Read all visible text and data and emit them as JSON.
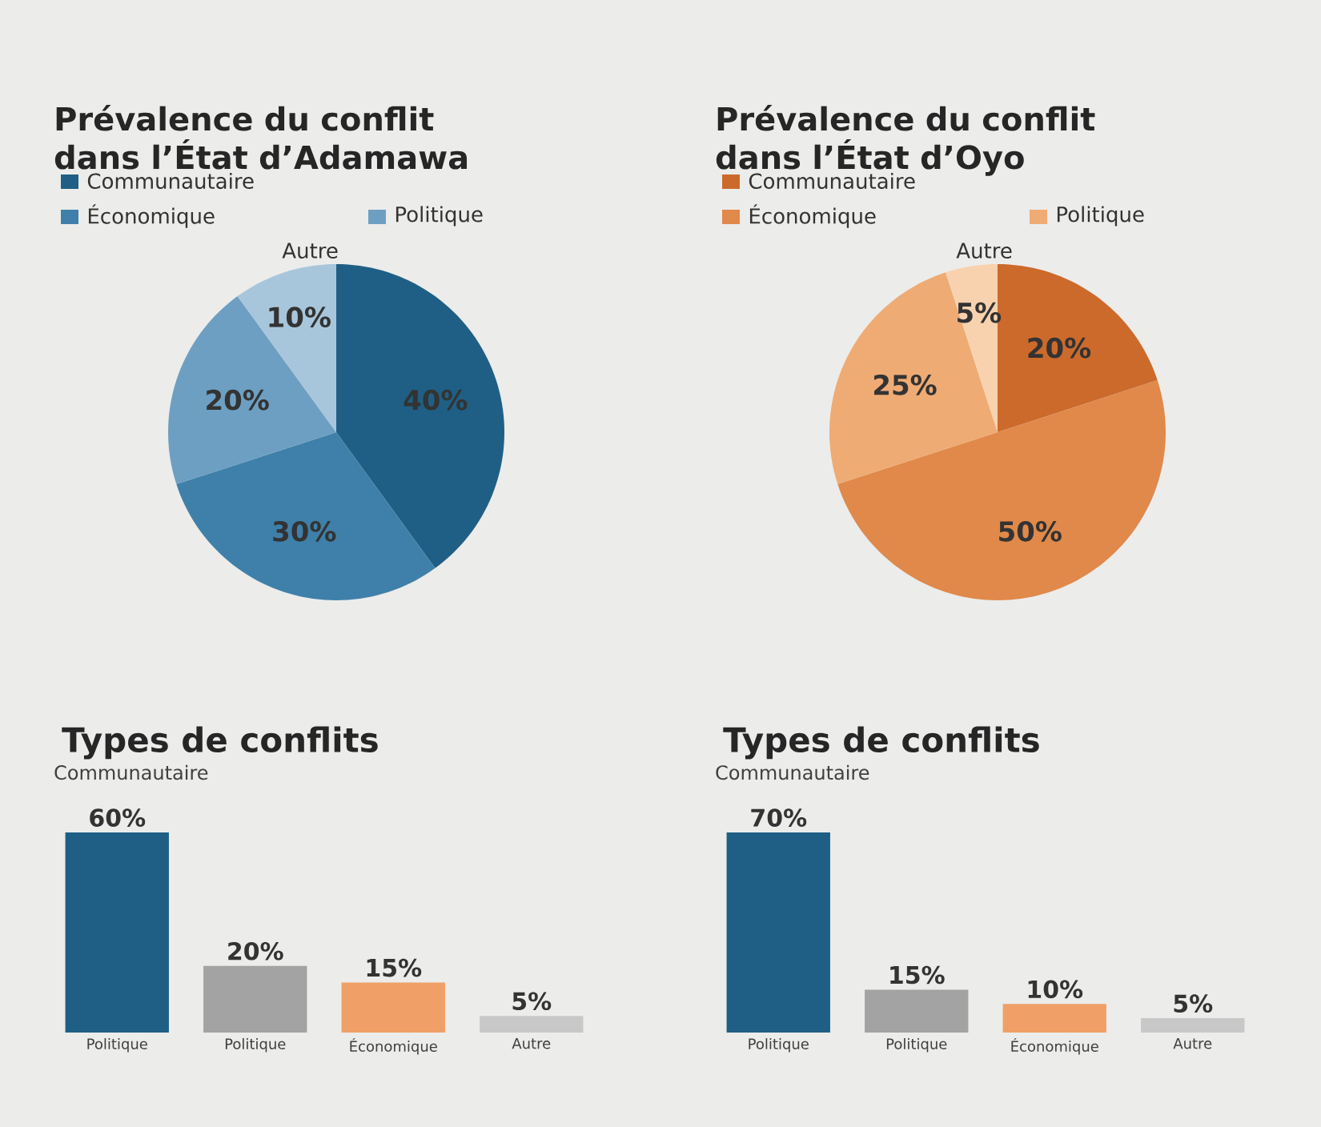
{
  "chart_data": [
    {
      "type": "pie",
      "title": "Prévalence du conflit dans l’État d’Adamawa",
      "categories": [
        "Communautaire",
        "Économique",
        "Politique",
        "Autre"
      ],
      "values": [
        40,
        30,
        20,
        10
      ],
      "value_labels": [
        "40%",
        "30%",
        "20%",
        "10%"
      ],
      "colors": [
        "#1f5f85",
        "#3f80aa",
        "#6d9fc2",
        "#a8c6db"
      ],
      "legend": "top"
    },
    {
      "type": "pie",
      "title": "Prévalence du conflit dans l’État d’Oyo",
      "categories": [
        "Communautaire",
        "Économique",
        "Politique",
        "Autre"
      ],
      "values": [
        20,
        50,
        25,
        5
      ],
      "value_labels": [
        "20%",
        "50%",
        "25%",
        "5%"
      ],
      "colors": [
        "#cc6a2c",
        "#e0894a",
        "#efab74",
        "#f8d2ae"
      ],
      "legend": "top"
    },
    {
      "type": "bar",
      "title": "Types de conflits",
      "categories": [
        "Politique",
        "Politique",
        "Économique",
        "Autre"
      ],
      "values": [
        60,
        20,
        15,
        5
      ],
      "value_labels": [
        "60%",
        "20%",
        "15%",
        "5%"
      ],
      "colors": [
        "#1f5f85",
        "#a3a3a3",
        "#f0a066",
        "#c8c8c8"
      ],
      "annotations": [
        "Communautaire"
      ]
    },
    {
      "type": "bar",
      "title": "Types de conflits",
      "categories": [
        "Politique",
        "Politique",
        "Économique",
        "Autre"
      ],
      "values": [
        70,
        15,
        10,
        5
      ],
      "value_labels": [
        "70%",
        "15%",
        "10%",
        "5%"
      ],
      "colors": [
        "#1f5f85",
        "#a3a3a3",
        "#f0a066",
        "#c8c8c8"
      ],
      "annotations": [
        "Communautaire"
      ]
    }
  ]
}
